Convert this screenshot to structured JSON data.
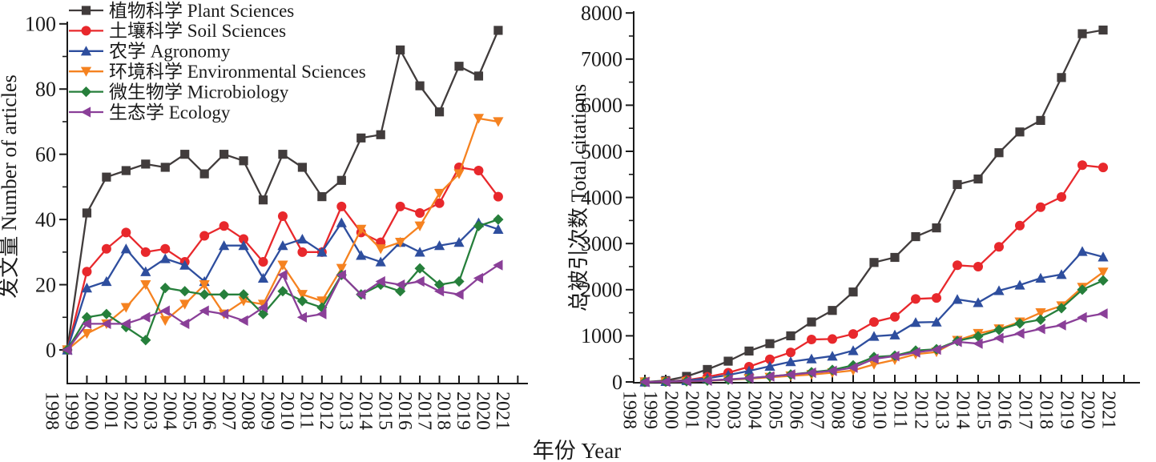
{
  "figure": {
    "background": "#ffffff",
    "x_axis_label": "年份 Year",
    "legend_position": "top-left-of-left-chart"
  },
  "chart_data": [
    {
      "type": "line",
      "title": "",
      "ylabel": "发文量 Number of articles",
      "xlabel": "年份 Year",
      "ylim": [
        0,
        100
      ],
      "yticks": [
        0,
        20,
        40,
        60,
        80,
        100
      ],
      "yminor_step": 10,
      "grid": "off",
      "legend": "top-left",
      "axis_years": [
        1998,
        1999,
        2000,
        2001,
        2002,
        2003,
        2004,
        2005,
        2006,
        2007,
        2008,
        2009,
        2010,
        2011,
        2012,
        2013,
        2014,
        2015,
        2016,
        2017,
        2018,
        2019,
        2020,
        2021
      ],
      "x": [
        1998,
        1999,
        2000,
        2001,
        2002,
        2003,
        2004,
        2005,
        2006,
        2007,
        2008,
        2009,
        2010,
        2011,
        2012,
        2013,
        2014,
        2015,
        2016,
        2017,
        2018,
        2019,
        2020
      ],
      "series": [
        {
          "name": "植物科学 Plant Sciences",
          "color": "#413c3c",
          "marker": "square",
          "values": [
            0,
            42,
            53,
            55,
            57,
            56,
            60,
            54,
            60,
            58,
            46,
            60,
            56,
            47,
            52,
            65,
            66,
            92,
            81,
            73,
            87,
            84,
            98
          ]
        },
        {
          "name": "土壤科学 Soil Sciences",
          "color": "#e8282c",
          "marker": "circle",
          "values": [
            0,
            24,
            31,
            36,
            30,
            31,
            27,
            35,
            38,
            34,
            27,
            41,
            30,
            30,
            44,
            36,
            33,
            44,
            42,
            45,
            56,
            55,
            47
          ]
        },
        {
          "name": "农学 Agronomy",
          "color": "#2e4e9e",
          "marker": "triangle-up",
          "values": [
            0,
            19,
            21,
            31,
            24,
            28,
            26,
            21,
            32,
            32,
            22,
            32,
            34,
            30,
            39,
            29,
            27,
            33,
            30,
            32,
            33,
            39,
            37
          ]
        },
        {
          "name": "环境科学 Environmental Sciences",
          "color": "#f58220",
          "marker": "triangle-down",
          "values": [
            0,
            5,
            8,
            13,
            20,
            9,
            14,
            20,
            11,
            15,
            14,
            26,
            17,
            15,
            25,
            37,
            31,
            33,
            38,
            48,
            54,
            71,
            70
          ]
        },
        {
          "name": "微生物学 Microbiology",
          "color": "#267f3b",
          "marker": "diamond",
          "values": [
            0,
            10,
            11,
            7,
            3,
            19,
            18,
            17,
            17,
            17,
            11,
            18,
            15,
            13,
            23,
            17,
            20,
            18,
            25,
            20,
            21,
            38,
            40
          ]
        },
        {
          "name": "生态学 Ecology",
          "color": "#8a3f98",
          "marker": "triangle-left",
          "values": [
            0,
            8,
            8,
            8,
            10,
            12,
            8,
            12,
            11,
            9,
            13,
            23,
            10,
            11,
            23,
            17,
            21,
            20,
            21,
            18,
            17,
            22,
            26
          ]
        }
      ]
    },
    {
      "type": "line",
      "title": "",
      "ylabel": "总被引次数 Total citations",
      "xlabel": "年份 Year",
      "ylim": [
        0,
        8000
      ],
      "yticks": [
        0,
        1000,
        2000,
        3000,
        4000,
        5000,
        6000,
        7000,
        8000
      ],
      "yminor_step": 500,
      "grid": "off",
      "legend": "none",
      "axis_years": [
        1998,
        1999,
        2000,
        2001,
        2002,
        2003,
        2004,
        2005,
        2006,
        2007,
        2008,
        2009,
        2010,
        2011,
        2012,
        2013,
        2014,
        2015,
        2016,
        2017,
        2018,
        2019,
        2020,
        2021
      ],
      "x": [
        1998,
        1999,
        2000,
        2001,
        2002,
        2003,
        2004,
        2005,
        2006,
        2007,
        2008,
        2009,
        2010,
        2011,
        2012,
        2013,
        2014,
        2015,
        2016,
        2017,
        2018,
        2019,
        2020
      ],
      "series": [
        {
          "name": "植物科学 Plant Sciences",
          "color": "#413c3c",
          "marker": "square",
          "values": [
            0,
            30,
            120,
            270,
            450,
            670,
            830,
            1000,
            1300,
            1550,
            1950,
            2590,
            2700,
            3150,
            3340,
            4280,
            4400,
            4970,
            5420,
            5670,
            6600,
            7550,
            7630
          ]
        },
        {
          "name": "土壤科学 Soil Sciences",
          "color": "#e8282c",
          "marker": "circle",
          "values": [
            0,
            10,
            40,
            110,
            200,
            330,
            490,
            640,
            920,
            930,
            1040,
            1300,
            1410,
            1800,
            1820,
            2530,
            2500,
            2930,
            3390,
            3790,
            4010,
            4700,
            4650
          ]
        },
        {
          "name": "农学 Agronomy",
          "color": "#2e4e9e",
          "marker": "triangle-up",
          "values": [
            0,
            10,
            30,
            80,
            150,
            240,
            340,
            440,
            500,
            560,
            680,
            990,
            1020,
            1290,
            1300,
            1790,
            1720,
            1980,
            2100,
            2250,
            2330,
            2830,
            2710
          ]
        },
        {
          "name": "环境科学 Environmental Sciences",
          "color": "#f58220",
          "marker": "triangle-down",
          "values": [
            0,
            5,
            10,
            25,
            45,
            70,
            100,
            130,
            160,
            200,
            250,
            380,
            480,
            600,
            650,
            900,
            1050,
            1150,
            1300,
            1500,
            1650,
            2050,
            2380
          ]
        },
        {
          "name": "微生物学 Microbiology",
          "color": "#267f3b",
          "marker": "diamond",
          "values": [
            0,
            5,
            15,
            30,
            50,
            80,
            120,
            160,
            210,
            260,
            360,
            540,
            570,
            680,
            710,
            890,
            990,
            1130,
            1270,
            1350,
            1600,
            2000,
            2200
          ]
        },
        {
          "name": "生态学 Ecology",
          "color": "#8a3f98",
          "marker": "triangle-left",
          "values": [
            0,
            5,
            15,
            30,
            55,
            85,
            120,
            160,
            200,
            240,
            310,
            500,
            560,
            640,
            700,
            870,
            830,
            950,
            1050,
            1150,
            1230,
            1400,
            1480
          ]
        }
      ]
    }
  ]
}
